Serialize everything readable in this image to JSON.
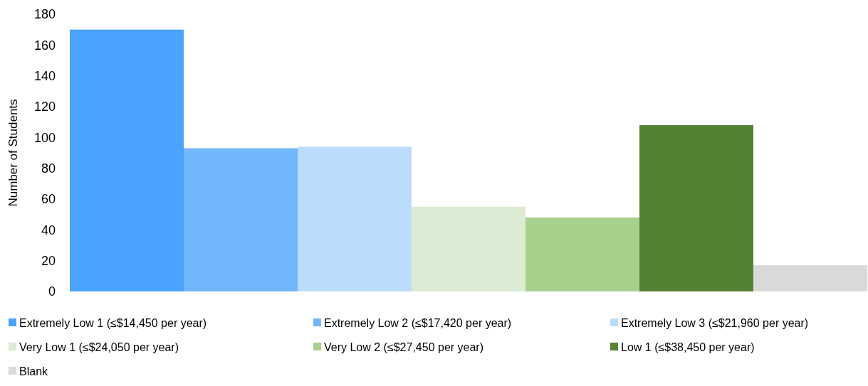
{
  "chart_data": {
    "type": "bar",
    "ylabel": "Number of Students",
    "categories": [
      null
    ],
    "series": [
      {
        "name": "Extremely Low 1 (≤$14,450 per year)",
        "color": "#4aa3ff",
        "values": [
          170
        ]
      },
      {
        "name": "Extremely Low 2 (≤$17,420 per year)",
        "color": "#72b6fb",
        "values": [
          93
        ]
      },
      {
        "name": "Extremely Low 3 (≤$21,960 per year)",
        "color": "#bbdcfb",
        "values": [
          94
        ]
      },
      {
        "name": "Very Low 1 (≤$24,050 per year)",
        "color": "#dcebd3",
        "values": [
          55
        ]
      },
      {
        "name": "Very Low 2 (≤$27,450 per year)",
        "color": "#a8d08d",
        "values": [
          48
        ]
      },
      {
        "name": "Low 1 (≤$38,450 per year)",
        "color": "#548235",
        "values": [
          108
        ]
      },
      {
        "name": "Blank",
        "color": "#d9d9d9",
        "values": [
          17
        ]
      }
    ],
    "ylim": [
      0,
      180
    ],
    "yticks": [
      0,
      20,
      40,
      60,
      80,
      100,
      120,
      140,
      160,
      180
    ],
    "grid": false,
    "legend": "bottom"
  }
}
